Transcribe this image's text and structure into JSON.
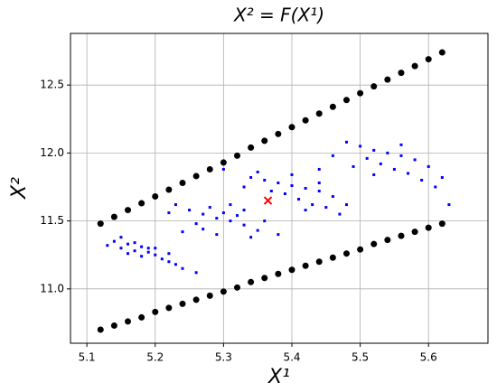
{
  "chart_data": {
    "type": "scatter",
    "title": "X² = F(X¹)",
    "x_label": "X¹",
    "y_label": "X²",
    "xlim": [
      5.076,
      5.687
    ],
    "ylim": [
      10.6,
      12.88
    ],
    "xticks": [
      5.1,
      5.2,
      5.3,
      5.4,
      5.5,
      5.6
    ],
    "yticks": [
      {
        "value": 11,
        "label": "11.0"
      },
      11.5,
      {
        "value": 12,
        "label": "12.0"
      },
      12.5
    ],
    "grid": true,
    "series": [
      {
        "color": "#000000",
        "marker": "o",
        "x": [
          5.12,
          5.14,
          5.16,
          5.18,
          5.2,
          5.22,
          5.24,
          5.26,
          5.28,
          5.3,
          5.32,
          5.34,
          5.36,
          5.38,
          5.4,
          5.42,
          5.44,
          5.46,
          5.48,
          5.5,
          5.52,
          5.54,
          5.56,
          5.58,
          5.6,
          5.62
        ],
        "values": [
          11.48,
          11.53,
          11.58,
          11.63,
          11.68,
          11.73,
          11.78,
          11.83,
          11.88,
          11.93,
          11.98,
          12.04,
          12.09,
          12.14,
          12.19,
          12.24,
          12.29,
          12.34,
          12.39,
          12.44,
          12.49,
          12.54,
          12.59,
          12.64,
          12.69,
          12.74
        ]
      },
      {
        "color": "#000000",
        "marker": "o",
        "x": [
          5.12,
          5.14,
          5.16,
          5.18,
          5.2,
          5.22,
          5.24,
          5.26,
          5.28,
          5.3,
          5.32,
          5.34,
          5.36,
          5.38,
          5.4,
          5.42,
          5.44,
          5.46,
          5.48,
          5.5,
          5.52,
          5.54,
          5.56,
          5.58,
          5.6,
          5.62
        ],
        "values": [
          10.7,
          10.73,
          10.76,
          10.79,
          10.83,
          10.86,
          10.89,
          10.92,
          10.95,
          10.98,
          11.01,
          11.05,
          11.08,
          11.11,
          11.14,
          11.17,
          11.2,
          11.23,
          11.26,
          11.29,
          11.33,
          11.36,
          11.39,
          11.42,
          11.45,
          11.48
        ]
      },
      {
        "color": "#0000ff",
        "marker": "s",
        "x": [
          5.14,
          5.15,
          5.16,
          5.17,
          5.18,
          5.19,
          5.2,
          5.21,
          5.22,
          5.23,
          5.15,
          5.17,
          5.19,
          5.13,
          5.16,
          5.18,
          5.24,
          5.26,
          5.2,
          5.22,
          5.23,
          5.25,
          5.27,
          5.29,
          5.31,
          5.33,
          5.35,
          5.26,
          5.28,
          5.3,
          5.32,
          5.34,
          5.29,
          5.24,
          5.36,
          5.22,
          5.31,
          5.27,
          5.33,
          5.38,
          5.34,
          5.36,
          5.38,
          5.4,
          5.42,
          5.44,
          5.46,
          5.48,
          5.39,
          5.41,
          5.43,
          5.45,
          5.37,
          5.4,
          5.44,
          5.33,
          5.35,
          5.47,
          5.42,
          5.3,
          5.48,
          5.5,
          5.52,
          5.54,
          5.56,
          5.58,
          5.6,
          5.62,
          5.53,
          5.55,
          5.57,
          5.59,
          5.51,
          5.46,
          5.49,
          5.56,
          5.61,
          5.63,
          5.44,
          5.52
        ],
        "values": [
          11.35,
          11.3,
          11.33,
          11.28,
          11.31,
          11.27,
          11.25,
          11.22,
          11.2,
          11.18,
          11.38,
          11.34,
          11.3,
          11.32,
          11.26,
          11.24,
          11.15,
          11.12,
          11.3,
          11.26,
          11.62,
          11.58,
          11.55,
          11.52,
          11.5,
          11.47,
          11.43,
          11.48,
          11.6,
          11.56,
          11.54,
          11.38,
          11.4,
          11.42,
          11.5,
          11.56,
          11.62,
          11.44,
          11.58,
          11.4,
          11.82,
          11.8,
          11.78,
          11.76,
          11.74,
          11.72,
          11.68,
          11.62,
          11.7,
          11.66,
          11.62,
          11.6,
          11.72,
          11.84,
          11.78,
          11.75,
          11.86,
          11.55,
          11.58,
          11.88,
          12.08,
          12.05,
          12.02,
          12.0,
          11.98,
          11.95,
          11.9,
          11.82,
          11.92,
          11.88,
          11.85,
          11.8,
          11.96,
          11.98,
          11.9,
          12.06,
          11.75,
          11.62,
          11.88,
          11.84
        ]
      },
      {
        "color": "#ff0000",
        "marker": "x",
        "x": [
          5.365
        ],
        "values": [
          11.65
        ]
      }
    ]
  }
}
